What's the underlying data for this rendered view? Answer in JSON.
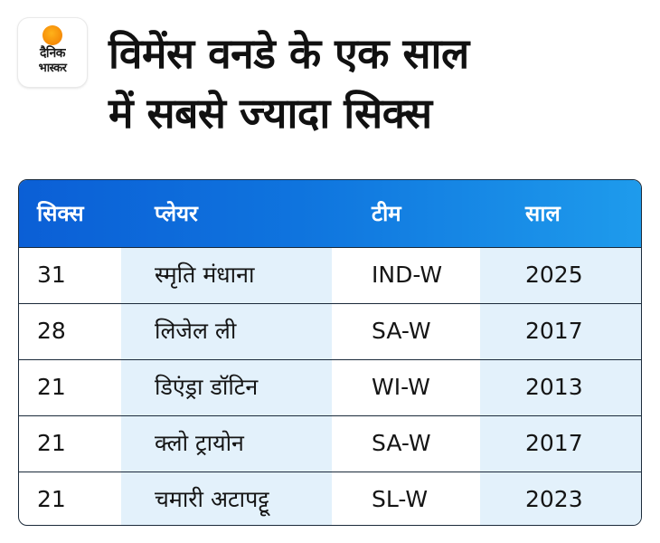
{
  "logo": {
    "line1": "दैनिक",
    "line2": "भास्कर",
    "color": "#f58a07"
  },
  "title": {
    "line1": "विमेंस वनडे के एक साल",
    "line2": "में सबसे ज्यादा सिक्स"
  },
  "table": {
    "header_color": "#0f74de",
    "shade_color": "#e3f1fb",
    "columns": [
      "सिक्स",
      "प्लेयर",
      "टीम",
      "साल"
    ],
    "rows": [
      {
        "sixes": "31",
        "player": "स्मृति मंधाना",
        "team": "IND-W",
        "year": "2025"
      },
      {
        "sixes": "28",
        "player": "लिजेल ली",
        "team": "SA-W",
        "year": "2017"
      },
      {
        "sixes": "21",
        "player": "डिएंड्रा डॉटिन",
        "team": "WI-W",
        "year": "2013"
      },
      {
        "sixes": "21",
        "player": "क्लो ट्रायोन",
        "team": "SA-W",
        "year": "2017"
      },
      {
        "sixes": "21",
        "player": "चमारी अटापट्टू",
        "team": "SL-W",
        "year": "2023"
      }
    ]
  }
}
